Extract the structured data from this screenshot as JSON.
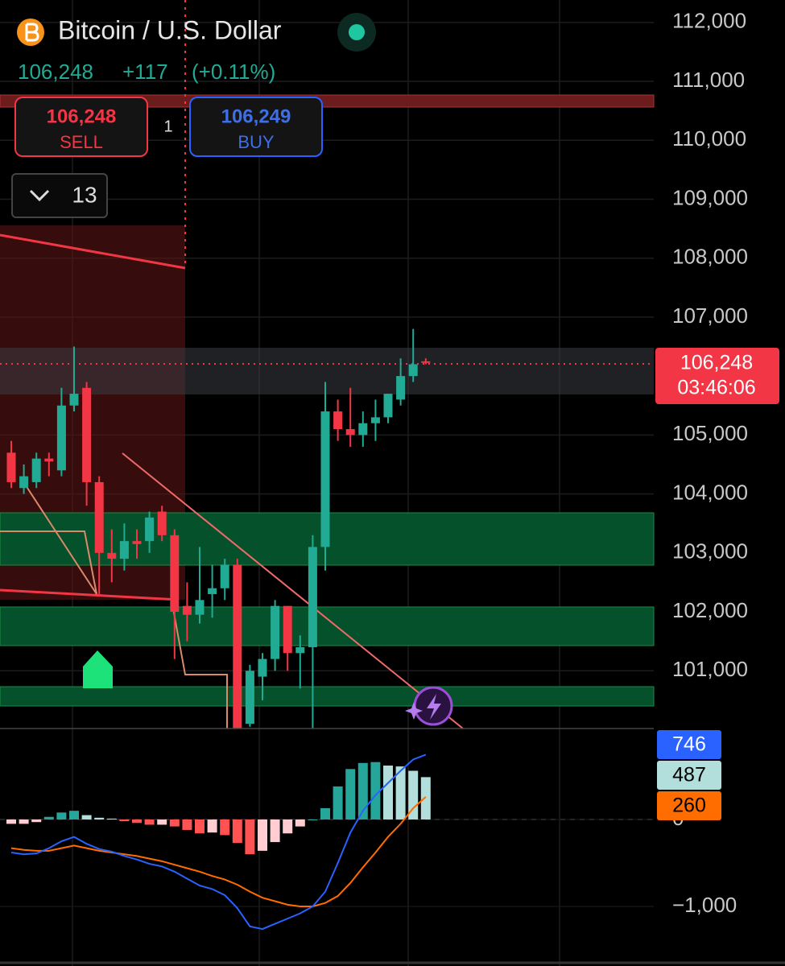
{
  "header": {
    "title": "Bitcoin / U.S. Dollar",
    "price": "106,248",
    "change": "+117",
    "change_percent": "(+0.11%)"
  },
  "trade": {
    "sell_price": "106,248",
    "sell_label": "SELL",
    "quantity": "1",
    "buy_price": "106,249",
    "buy_label": "BUY"
  },
  "interval_selector": "13",
  "price_tag": {
    "price": "106,248",
    "countdown": "03:46:06"
  },
  "chart_data": [
    {
      "type": "candlestick",
      "ylim": [
        100020,
        112380
      ],
      "yticks": [
        {
          "value": 112000,
          "label": "112,000"
        },
        {
          "value": 111000,
          "label": "111,000"
        },
        {
          "value": 110000,
          "label": "110,000"
        },
        {
          "value": 109000,
          "label": "109,000"
        },
        {
          "value": 108000,
          "label": "108,000"
        },
        {
          "value": 107000,
          "label": "107,000"
        },
        {
          "value": 105000,
          "label": "105,000"
        },
        {
          "value": 104000,
          "label": "104,000"
        },
        {
          "value": 103000,
          "label": "103,000"
        },
        {
          "value": 102000,
          "label": "102,000"
        },
        {
          "value": 101000,
          "label": "101,000"
        }
      ],
      "up_color": "#22ab94",
      "down_color": "#f23645",
      "open": [
        104700,
        104100,
        104200,
        104600,
        104400,
        105500,
        105800,
        104200,
        103000,
        102900,
        103200,
        103200,
        103700,
        103300,
        102100,
        101950,
        102300,
        102400,
        102800,
        100100,
        100900,
        101200,
        102100,
        101300,
        101400,
        103100,
        105400,
        105100,
        105000,
        105200,
        105300,
        105600,
        106000,
        106250
      ],
      "high": [
        104900,
        104500,
        104700,
        104700,
        105800,
        106500,
        105900,
        104300,
        103400,
        103500,
        103400,
        103700,
        103800,
        103400,
        102500,
        103100,
        102800,
        102900,
        102900,
        101100,
        101300,
        102200,
        102100,
        101600,
        103300,
        105900,
        105600,
        105800,
        105400,
        105600,
        105700,
        106300,
        106800,
        106300
      ],
      "low": [
        104100,
        104000,
        104100,
        104300,
        104300,
        105400,
        103800,
        102300,
        102500,
        102700,
        102900,
        103000,
        103200,
        101200,
        101500,
        101800,
        101900,
        102200,
        100020,
        100050,
        100500,
        101000,
        101000,
        100700,
        100020,
        102700,
        104900,
        104800,
        104800,
        104900,
        105200,
        105500,
        105900,
        106200
      ],
      "close": [
        104200,
        104300,
        104600,
        104550,
        105500,
        105700,
        104200,
        103000,
        102900,
        103200,
        103150,
        103600,
        103300,
        102000,
        101950,
        102200,
        102400,
        102800,
        100020,
        101000,
        101200,
        102100,
        101300,
        101400,
        103100,
        105400,
        105100,
        105000,
        105200,
        105300,
        105700,
        106000,
        106200,
        106248
      ]
    },
    {
      "type": "macd",
      "ylim": [
        -1685,
        1046
      ],
      "yticks": [
        0,
        {
          "value": -1000,
          "label": "−1,000"
        }
      ],
      "macd": {
        "color": "#2962ff",
        "values": [
          -380,
          -400,
          -390,
          -330,
          -250,
          -200,
          -280,
          -340,
          -370,
          -420,
          -460,
          -510,
          -540,
          -600,
          -680,
          -760,
          -800,
          -870,
          -1020,
          -1230,
          -1260,
          -1200,
          -1140,
          -1080,
          -1000,
          -830,
          -500,
          -150,
          100,
          280,
          420,
          560,
          690,
          746
        ]
      },
      "histogram": {
        "values": [
          -50,
          -50,
          -30,
          30,
          80,
          100,
          50,
          20,
          10,
          -20,
          -40,
          -60,
          -60,
          -80,
          -120,
          -160,
          -150,
          -180,
          -270,
          -400,
          -360,
          -260,
          -160,
          -80,
          0,
          130,
          380,
          580,
          650,
          660,
          620,
          610,
          560,
          487
        ]
      },
      "signal": {
        "color": "#ff6d00",
        "values": [
          -330,
          -350,
          -360,
          -360,
          -330,
          -300,
          -330,
          -360,
          -380,
          -400,
          -420,
          -450,
          -480,
          -520,
          -560,
          -600,
          -650,
          -690,
          -750,
          -830,
          -900,
          -940,
          -980,
          -1000,
          -1000,
          -960,
          -880,
          -730,
          -550,
          -380,
          -200,
          -50,
          130,
          260
        ]
      }
    }
  ]
}
